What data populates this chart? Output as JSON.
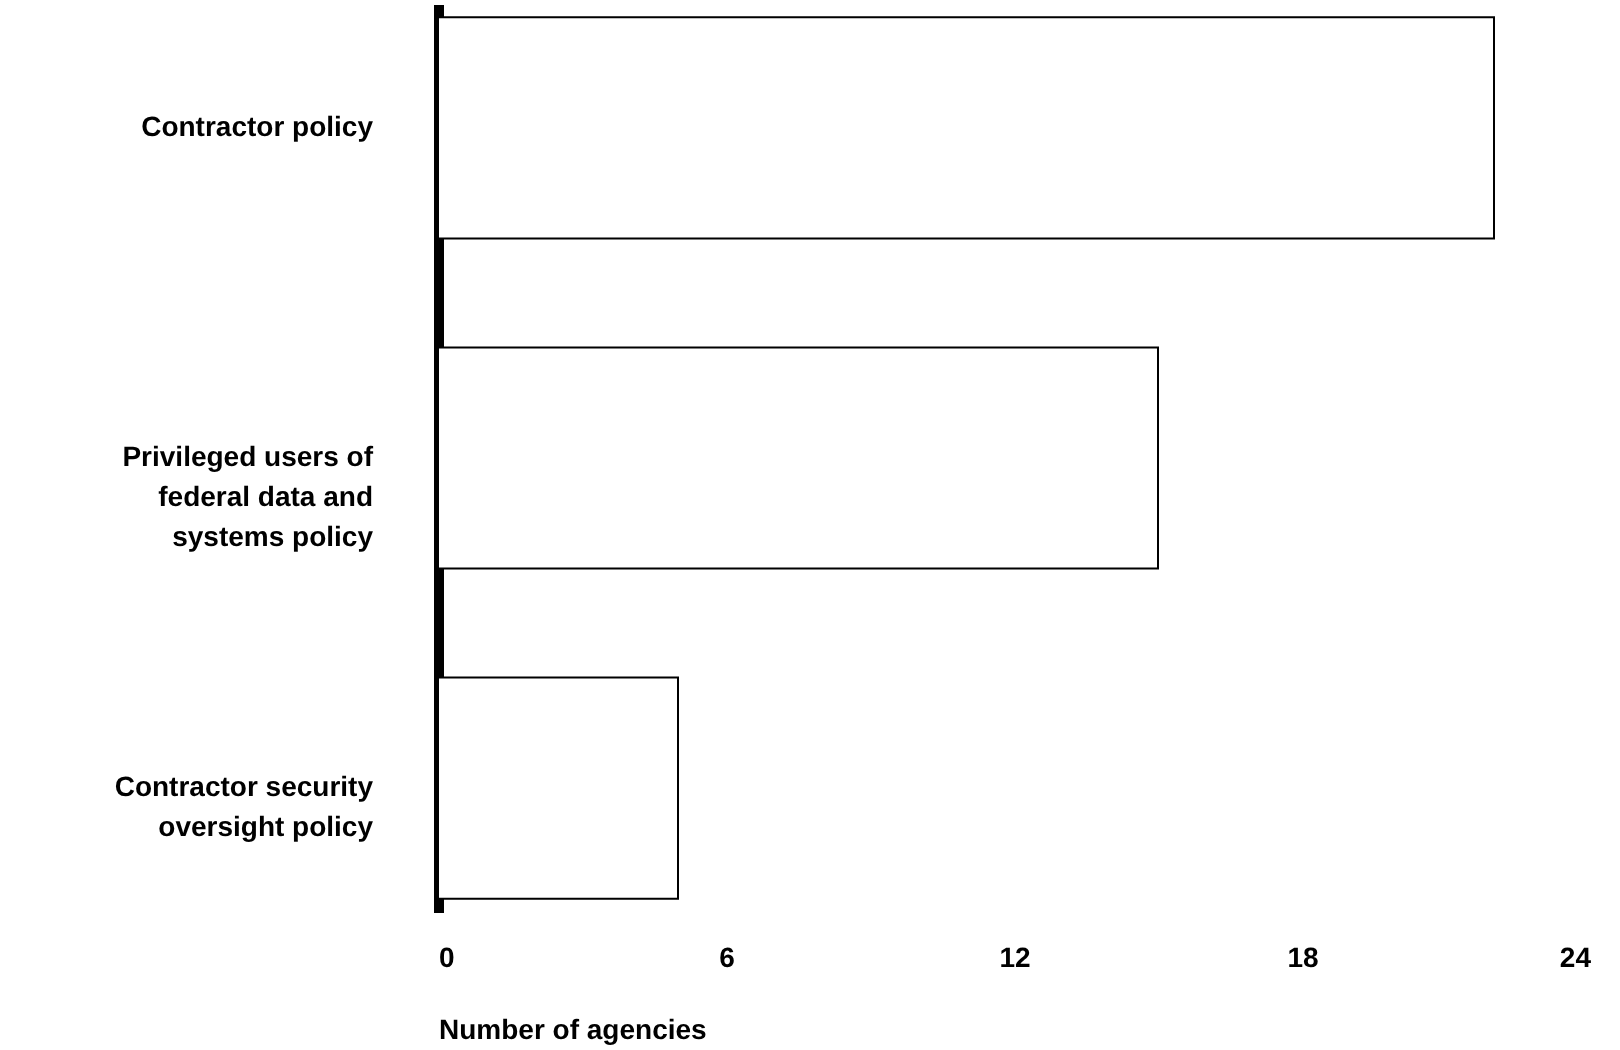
{
  "chart_data": {
    "type": "bar",
    "orientation": "horizontal",
    "xlabel": "Number of agencies",
    "categories": [
      "Contractor policy",
      "Privileged users of federal data and systems policy",
      "Contractor security oversight policy"
    ],
    "values": [
      22,
      15,
      5
    ],
    "color": "#ffffff",
    "xlim": [
      0,
      24
    ],
    "xticks": [
      0,
      6,
      12,
      18,
      24
    ],
    "grid": false
  }
}
